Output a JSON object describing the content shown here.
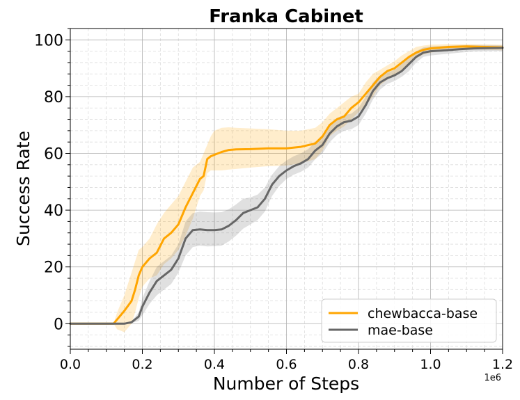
{
  "chart_data": {
    "type": "line",
    "title": "Franka Cabinet",
    "xlabel": "Number of Steps",
    "ylabel": "Success Rate",
    "x_offset_label": "1e6",
    "xlim": [
      0.0,
      1.2
    ],
    "ylim": [
      -9,
      104
    ],
    "xticks": [
      0.0,
      0.2,
      0.4,
      0.6,
      0.8,
      1.0,
      1.2
    ],
    "xtick_labels": [
      "0.0",
      "0.2",
      "0.4",
      "0.6",
      "0.8",
      "1.0",
      "1.2"
    ],
    "yticks": [
      0,
      20,
      40,
      60,
      80,
      100
    ],
    "ytick_labels": [
      "0",
      "20",
      "40",
      "60",
      "80",
      "100"
    ],
    "grid": true,
    "legend_position": "lower-right",
    "series": [
      {
        "name": "chewbacca-base",
        "color": "#FFA500",
        "x": [
          0.0,
          0.12,
          0.13,
          0.15,
          0.17,
          0.18,
          0.19,
          0.2,
          0.22,
          0.24,
          0.26,
          0.28,
          0.3,
          0.32,
          0.34,
          0.36,
          0.37,
          0.38,
          0.39,
          0.4,
          0.42,
          0.44,
          0.46,
          0.5,
          0.55,
          0.6,
          0.64,
          0.68,
          0.7,
          0.72,
          0.74,
          0.76,
          0.78,
          0.8,
          0.82,
          0.84,
          0.86,
          0.88,
          0.9,
          0.92,
          0.94,
          0.96,
          0.98,
          1.0,
          1.05,
          1.1,
          1.15,
          1.2
        ],
        "y": [
          0,
          0,
          1.5,
          4.5,
          8,
          12,
          17,
          20,
          23,
          25,
          30,
          32,
          35,
          41,
          46,
          51,
          52,
          58,
          59,
          59.5,
          60.5,
          61.2,
          61.4,
          61.5,
          61.8,
          61.8,
          62.3,
          63.5,
          66,
          70,
          72,
          73,
          76,
          78,
          81,
          84,
          87,
          89,
          90,
          92,
          94,
          95.5,
          96.5,
          97,
          97.5,
          97.7,
          97.5,
          97.3
        ],
        "upper": [
          0,
          0,
          4,
          10,
          18,
          22,
          26,
          27,
          30,
          35,
          39,
          42,
          45,
          50,
          55,
          57,
          60,
          63,
          66,
          68,
          69,
          69.2,
          69,
          68.8,
          68.5,
          68,
          68,
          69,
          71,
          74,
          76,
          78,
          80,
          81,
          85,
          88,
          89.5,
          91,
          92.5,
          94.5,
          96,
          97.5,
          98,
          98.3,
          98.5,
          98.5,
          98.4,
          98.3
        ],
        "lower": [
          0,
          0,
          -2,
          -3,
          0,
          4,
          9,
          13,
          16,
          17,
          21,
          23,
          26,
          31,
          37,
          45,
          47,
          53,
          54,
          54,
          54,
          54.3,
          54.5,
          55,
          55.5,
          55.7,
          56.5,
          58,
          61,
          66,
          68,
          69.5,
          72,
          74.5,
          77,
          80,
          84,
          86,
          87.5,
          89.5,
          92,
          93.5,
          94.8,
          95.5,
          96.5,
          96.8,
          96.6,
          96.3
        ]
      },
      {
        "name": "mae-base",
        "color": "#666666",
        "x": [
          0.0,
          0.15,
          0.17,
          0.19,
          0.2,
          0.22,
          0.24,
          0.26,
          0.28,
          0.3,
          0.32,
          0.34,
          0.36,
          0.38,
          0.4,
          0.42,
          0.44,
          0.46,
          0.48,
          0.5,
          0.52,
          0.54,
          0.56,
          0.58,
          0.6,
          0.62,
          0.64,
          0.66,
          0.68,
          0.7,
          0.72,
          0.74,
          0.76,
          0.78,
          0.8,
          0.82,
          0.84,
          0.86,
          0.88,
          0.9,
          0.92,
          0.94,
          0.96,
          0.98,
          1.0,
          1.04,
          1.08,
          1.12,
          1.16,
          1.2
        ],
        "y": [
          0,
          0,
          0.5,
          2.5,
          6,
          11,
          15,
          17,
          19,
          23,
          30,
          33,
          33.2,
          33,
          33,
          33.2,
          34.5,
          36.5,
          39,
          40,
          41,
          44,
          49,
          52,
          54,
          55.5,
          56.5,
          58,
          61,
          63,
          67,
          69.5,
          71,
          71.5,
          73,
          77,
          82,
          85,
          86.5,
          87.5,
          89,
          91.5,
          94,
          95.5,
          96,
          96.3,
          96.7,
          97,
          97.1,
          97.2
        ],
        "upper": [
          0,
          0,
          0.8,
          4,
          9,
          15,
          20,
          22,
          24,
          28,
          36,
          39,
          39.5,
          39.3,
          39.2,
          39.3,
          40.3,
          42,
          44,
          44.5,
          45.5,
          48,
          52.5,
          55.5,
          57.5,
          59,
          60,
          61.5,
          64,
          66,
          70,
          72.5,
          73.5,
          74,
          76,
          80,
          85,
          87.5,
          88.5,
          89.5,
          91.5,
          94,
          96,
          97.3,
          97.7,
          97.9,
          98.1,
          98.2,
          98.2,
          98.1
        ],
        "lower": [
          0,
          0,
          0.2,
          1,
          3,
          7,
          10,
          12,
          14,
          18,
          24,
          27,
          27.5,
          27.2,
          27.3,
          27.5,
          29,
          31,
          33.5,
          35,
          36.5,
          39.5,
          45,
          48.5,
          51,
          52.5,
          53.5,
          55,
          58,
          60,
          64,
          66.5,
          68,
          68.5,
          70,
          74,
          79,
          82.5,
          84.5,
          85.5,
          87,
          89,
          92,
          94,
          94.5,
          95,
          95.5,
          95.9,
          96,
          96.1
        ]
      }
    ]
  }
}
